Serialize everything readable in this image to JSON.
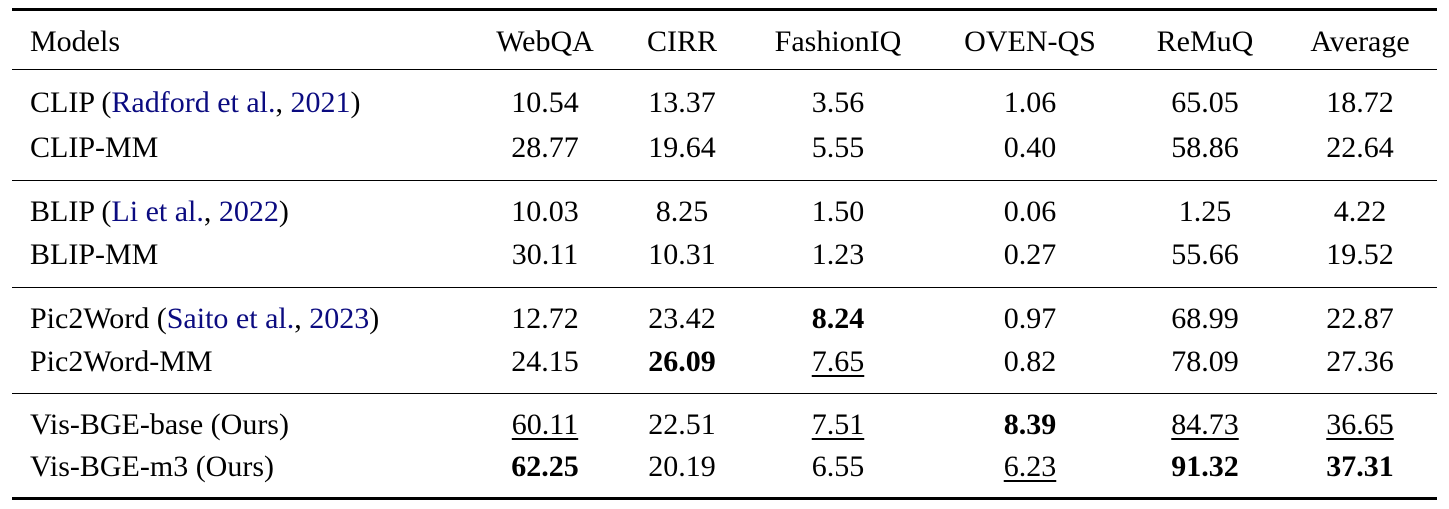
{
  "header": {
    "models_label": "Models",
    "columns": [
      "WebQA",
      "CIRR",
      "FashionIQ",
      "OVEN-QS",
      "ReMuQ",
      "Average"
    ]
  },
  "link_color": "#0b0b80",
  "groups": [
    {
      "rows": [
        {
          "name": "CLIP",
          "cite_author": "Radford et al.",
          "cite_year": "2021",
          "values": [
            {
              "v": "10.54"
            },
            {
              "v": "13.37"
            },
            {
              "v": "3.56"
            },
            {
              "v": "1.06"
            },
            {
              "v": "65.05"
            },
            {
              "v": "18.72"
            }
          ]
        },
        {
          "name": "CLIP-MM",
          "values": [
            {
              "v": "28.77"
            },
            {
              "v": "19.64"
            },
            {
              "v": "5.55"
            },
            {
              "v": "0.40"
            },
            {
              "v": "58.86"
            },
            {
              "v": "22.64"
            }
          ]
        }
      ]
    },
    {
      "rows": [
        {
          "name": "BLIP",
          "cite_author": "Li et al.",
          "cite_year": "2022",
          "values": [
            {
              "v": "10.03"
            },
            {
              "v": "8.25"
            },
            {
              "v": "1.50"
            },
            {
              "v": "0.06"
            },
            {
              "v": "1.25"
            },
            {
              "v": "4.22"
            }
          ]
        },
        {
          "name": "BLIP-MM",
          "values": [
            {
              "v": "30.11"
            },
            {
              "v": "10.31"
            },
            {
              "v": "1.23"
            },
            {
              "v": "0.27"
            },
            {
              "v": "55.66"
            },
            {
              "v": "19.52"
            }
          ]
        }
      ]
    },
    {
      "rows": [
        {
          "name": "Pic2Word",
          "cite_author": "Saito et al.",
          "cite_year": "2023",
          "values": [
            {
              "v": "12.72"
            },
            {
              "v": "23.42"
            },
            {
              "v": "8.24",
              "bold": true
            },
            {
              "v": "0.97"
            },
            {
              "v": "68.99"
            },
            {
              "v": "22.87"
            }
          ]
        },
        {
          "name": "Pic2Word-MM",
          "values": [
            {
              "v": "24.15"
            },
            {
              "v": "26.09",
              "bold": true
            },
            {
              "v": "7.65",
              "underline": true
            },
            {
              "v": "0.82"
            },
            {
              "v": "78.09"
            },
            {
              "v": "27.36"
            }
          ]
        }
      ]
    },
    {
      "rows": [
        {
          "name": "Vis-BGE-base (Ours)",
          "values": [
            {
              "v": "60.11",
              "underline": true
            },
            {
              "v": "22.51"
            },
            {
              "v": "7.51",
              "underline": true
            },
            {
              "v": "8.39",
              "bold": true
            },
            {
              "v": "84.73",
              "underline": true
            },
            {
              "v": "36.65",
              "underline": true
            }
          ]
        },
        {
          "name": "Vis-BGE-m3 (Ours)",
          "values": [
            {
              "v": "62.25",
              "bold": true
            },
            {
              "v": "20.19"
            },
            {
              "v": "6.55"
            },
            {
              "v": "6.23",
              "underline": true
            },
            {
              "v": "91.32",
              "bold": true
            },
            {
              "v": "37.31",
              "bold": true
            }
          ]
        }
      ]
    }
  ]
}
